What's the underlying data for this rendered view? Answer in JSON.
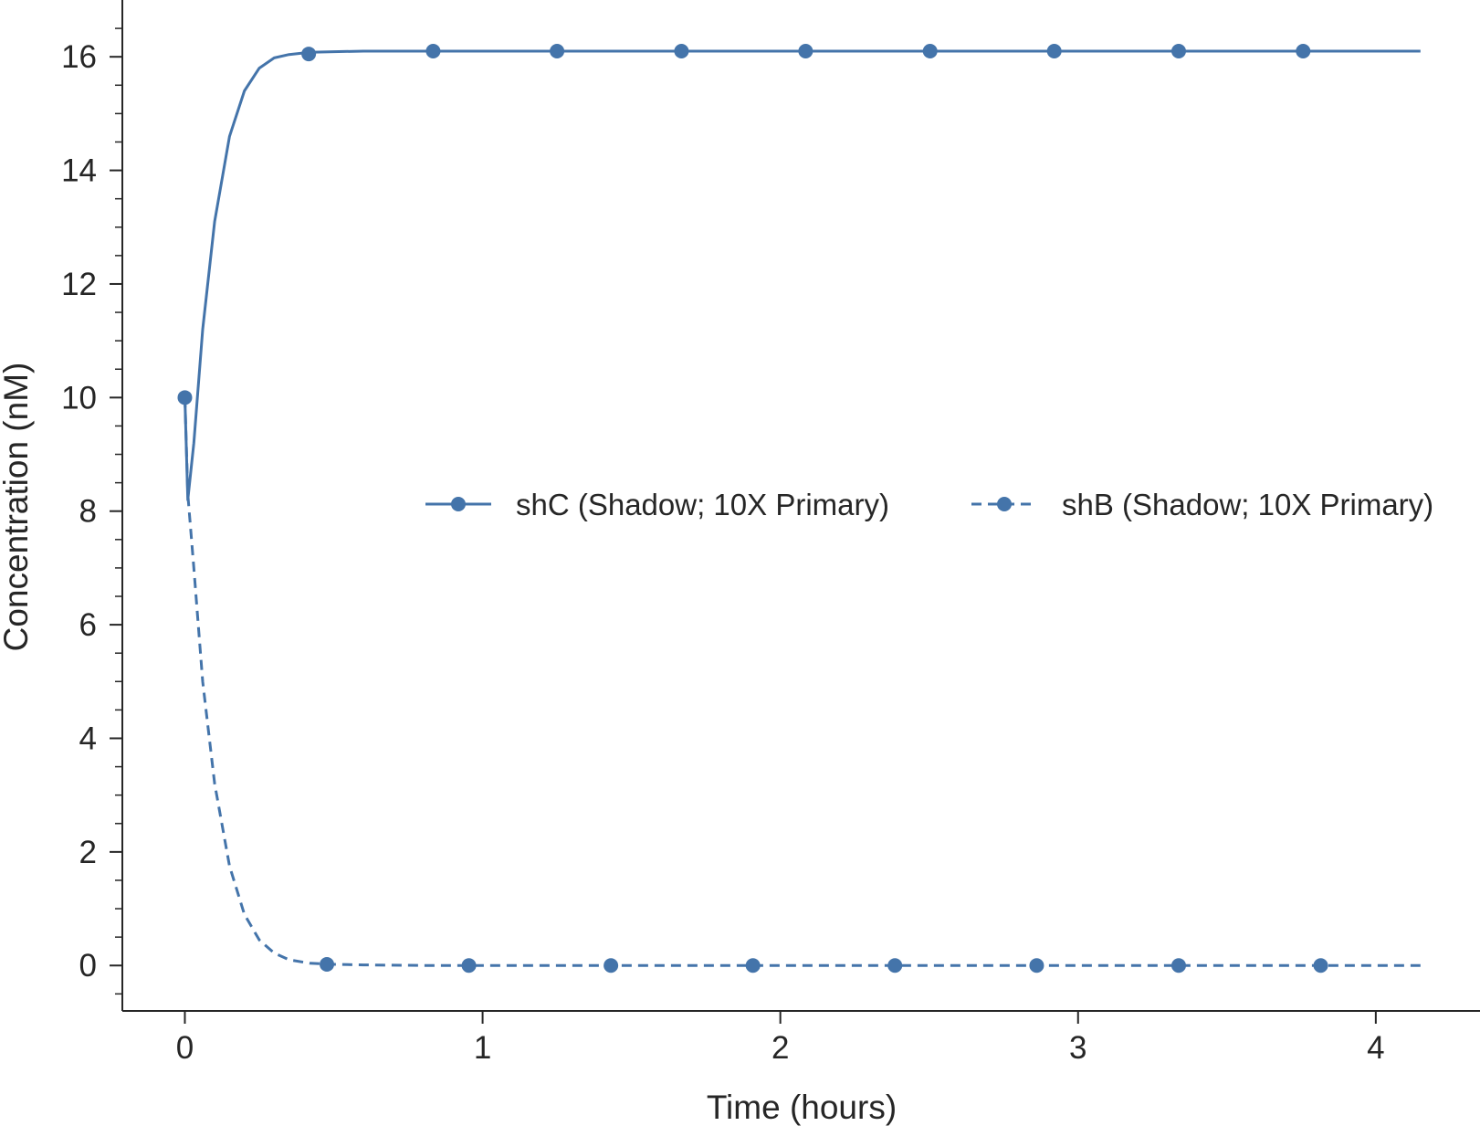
{
  "chart_data": {
    "type": "line",
    "title": "",
    "xlabel": "Time (hours)",
    "ylabel": "Concentration (nM)",
    "xlim": [
      -0.21,
      4.35
    ],
    "ylim": [
      -0.8,
      17.0
    ],
    "x_ticks": [
      0,
      1,
      2,
      3,
      4
    ],
    "x_tick_labels": [
      "0",
      "1",
      "2",
      "3",
      "4"
    ],
    "y_ticks": [
      0,
      2,
      4,
      6,
      8,
      10,
      12,
      14,
      16
    ],
    "y_tick_labels": [
      "0",
      "2",
      "4",
      "6",
      "8",
      "10",
      "12",
      "14",
      "16"
    ],
    "grid": false,
    "legend_position": "center-right",
    "color": "#4474aa",
    "series": [
      {
        "name": "shC (Shadow; 10X Primary)",
        "style": "solid",
        "x": [
          0,
          0.01,
          0.03,
          0.06,
          0.1,
          0.15,
          0.2,
          0.25,
          0.3,
          0.35,
          0.42,
          0.5,
          0.6,
          0.8,
          1.0,
          1.5,
          2.0,
          2.5,
          3.0,
          3.5,
          4.0,
          4.15
        ],
        "y": [
          10.0,
          8.2,
          9.2,
          11.2,
          13.1,
          14.6,
          15.4,
          15.8,
          15.98,
          16.04,
          16.08,
          16.09,
          16.1,
          16.1,
          16.1,
          16.1,
          16.1,
          16.1,
          16.1,
          16.1,
          16.1,
          16.1
        ],
        "markers_x": [
          0,
          0.416,
          0.834,
          1.25,
          1.668,
          2.085,
          2.503,
          2.92,
          3.338,
          3.756
        ],
        "markers_y": [
          10.0,
          16.05,
          16.1,
          16.1,
          16.1,
          16.1,
          16.1,
          16.1,
          16.1,
          16.1
        ]
      },
      {
        "name": "shB (Shadow; 10X Primary)",
        "style": "dashed",
        "x": [
          0,
          0.01,
          0.03,
          0.06,
          0.1,
          0.15,
          0.2,
          0.25,
          0.3,
          0.35,
          0.42,
          0.5,
          0.6,
          0.8,
          1.0,
          1.5,
          2.0,
          2.5,
          3.0,
          3.5,
          4.0,
          4.15
        ],
        "y": [
          10.0,
          8.3,
          7.0,
          5.0,
          3.2,
          1.75,
          0.9,
          0.45,
          0.22,
          0.1,
          0.04,
          0.02,
          0.01,
          0.0,
          0.0,
          0.0,
          0.0,
          0.0,
          0.0,
          0.0,
          0.0,
          0.0
        ],
        "markers_x": [
          0.477,
          0.954,
          1.431,
          1.908,
          2.385,
          2.861,
          3.338,
          3.815
        ],
        "markers_y": [
          0.02,
          0.0,
          0.0,
          0.0,
          0.0,
          0.0,
          0.0,
          0.0
        ]
      }
    ]
  }
}
